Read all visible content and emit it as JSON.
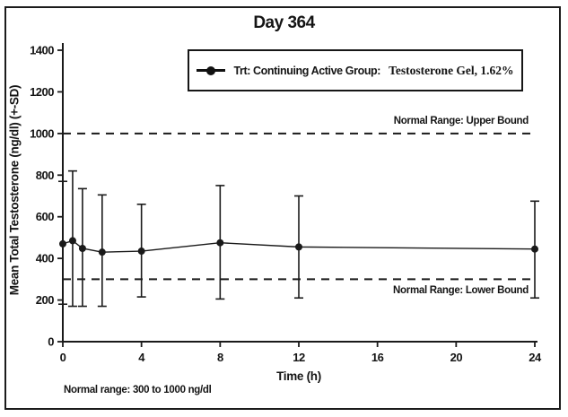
{
  "colors": {
    "ink": "#1a1a1a",
    "background": "#ffffff"
  },
  "chart_data": {
    "type": "line",
    "title": "Day 364",
    "xlabel": "Time (h)",
    "ylabel": "Mean Total Testosterone (ng/dl) (+-SD)",
    "footnote": "Normal range: 300 to 1000 ng/dl",
    "legend": {
      "position": "top-center",
      "marker": "filled-circle-on-line",
      "prefix": "Trt: Continuing Active Group:",
      "treatment": "Testosterone Gel, 1.62%"
    },
    "x": [
      0,
      0.5,
      1,
      2,
      4,
      8,
      12,
      24
    ],
    "xticks": [
      0,
      4,
      8,
      12,
      16,
      20,
      24
    ],
    "yticks": [
      0,
      200,
      400,
      600,
      800,
      1000,
      1200,
      1400
    ],
    "xlim": [
      0,
      24
    ],
    "ylim": [
      0,
      1400
    ],
    "grid": false,
    "series": [
      {
        "name": "Trt: Continuing Active Group: Testosterone Gel, 1.62%",
        "mean": [
          470,
          485,
          448,
          430,
          435,
          475,
          455,
          445
        ],
        "sd_upper": [
          770,
          820,
          735,
          705,
          660,
          750,
          700,
          675
        ],
        "sd_lower": [
          180,
          170,
          170,
          170,
          215,
          205,
          210,
          210
        ]
      }
    ],
    "reference_lines": [
      {
        "value": 1000,
        "label": "Normal Range: Upper Bound",
        "style": "dashed"
      },
      {
        "value": 300,
        "label": "Normal Range: Lower Bound",
        "style": "dashed"
      }
    ]
  }
}
